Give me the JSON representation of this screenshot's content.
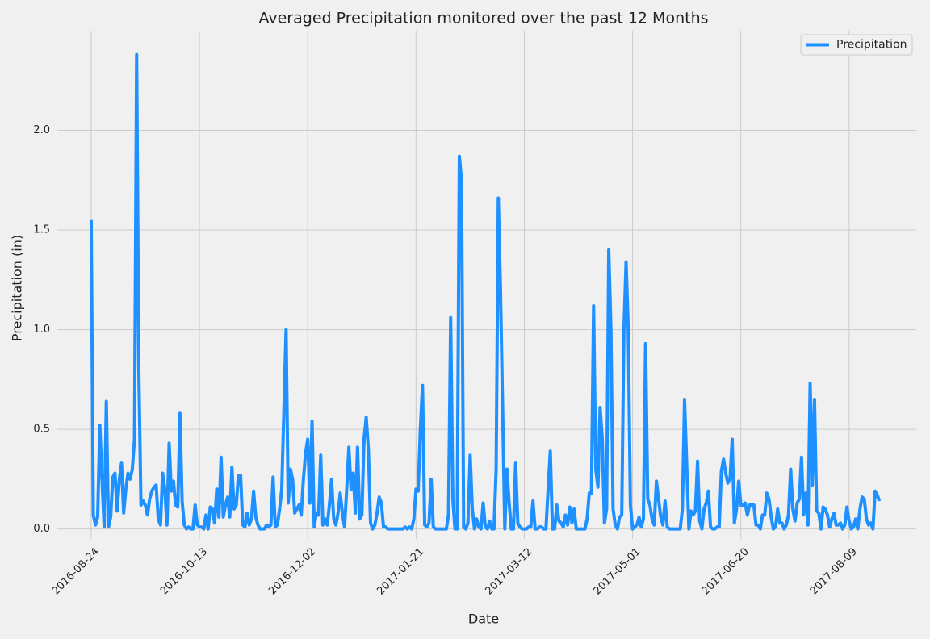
{
  "chart_data": {
    "type": "line",
    "title": "Averaged Precipitation monitored over the past 12 Months",
    "x_label": "Date",
    "y_label": "Precipitation (in)",
    "xlim": [
      "2016-08-08",
      "2017-09-09"
    ],
    "xticks": [
      "2016-08-24",
      "2016-10-13",
      "2016-12-02",
      "2017-01-21",
      "2017-03-12",
      "2017-05-01",
      "2017-06-20",
      "2017-08-09"
    ],
    "ylim": [
      -0.05,
      2.5
    ],
    "yticks": [
      {
        "value": 0,
        "label": "0.0"
      },
      0.5,
      {
        "value": 1,
        "label": "1.0"
      },
      1.5,
      {
        "value": 2,
        "label": "2.0"
      }
    ],
    "grid": true,
    "legend": "upper right",
    "x": [
      "2016-08-24",
      "2016-08-25",
      "2016-08-26",
      "2016-08-27",
      "2016-08-28",
      "2016-08-29",
      "2016-08-30",
      "2016-08-31",
      "2016-09-01",
      "2016-09-02",
      "2016-09-03",
      "2016-09-04",
      "2016-09-05",
      "2016-09-06",
      "2016-09-07",
      "2016-09-08",
      "2016-09-09",
      "2016-09-10",
      "2016-09-11",
      "2016-09-12",
      "2016-09-13",
      "2016-09-14",
      "2016-09-15",
      "2016-09-16",
      "2016-09-17",
      "2016-09-18",
      "2016-09-19",
      "2016-09-20",
      "2016-09-21",
      "2016-09-22",
      "2016-09-23",
      "2016-09-24",
      "2016-09-25",
      "2016-09-26",
      "2016-09-27",
      "2016-09-28",
      "2016-09-29",
      "2016-09-30",
      "2016-10-01",
      "2016-10-02",
      "2016-10-03",
      "2016-10-04",
      "2016-10-05",
      "2016-10-06",
      "2016-10-07",
      "2016-10-08",
      "2016-10-09",
      "2016-10-10",
      "2016-10-11",
      "2016-10-12",
      "2016-10-13",
      "2016-10-14",
      "2016-10-15",
      "2016-10-16",
      "2016-10-17",
      "2016-10-18",
      "2016-10-19",
      "2016-10-20",
      "2016-10-21",
      "2016-10-22",
      "2016-10-23",
      "2016-10-24",
      "2016-10-25",
      "2016-10-26",
      "2016-10-27",
      "2016-10-28",
      "2016-10-29",
      "2016-10-30",
      "2016-10-31",
      "2016-11-01",
      "2016-11-02",
      "2016-11-03",
      "2016-11-04",
      "2016-11-05",
      "2016-11-06",
      "2016-11-07",
      "2016-11-08",
      "2016-11-09",
      "2016-11-10",
      "2016-11-11",
      "2016-11-12",
      "2016-11-13",
      "2016-11-14",
      "2016-11-15",
      "2016-11-16",
      "2016-11-17",
      "2016-11-18",
      "2016-11-19",
      "2016-11-20",
      "2016-11-21",
      "2016-11-22",
      "2016-11-23",
      "2016-11-24",
      "2016-11-25",
      "2016-11-26",
      "2016-11-27",
      "2016-11-28",
      "2016-11-29",
      "2016-11-30",
      "2016-12-01",
      "2016-12-02",
      "2016-12-03",
      "2016-12-04",
      "2016-12-05",
      "2016-12-06",
      "2016-12-07",
      "2016-12-08",
      "2016-12-09",
      "2016-12-10",
      "2016-12-11",
      "2016-12-12",
      "2016-12-13",
      "2016-12-14",
      "2016-12-15",
      "2016-12-16",
      "2016-12-17",
      "2016-12-18",
      "2016-12-19",
      "2016-12-20",
      "2016-12-21",
      "2016-12-22",
      "2016-12-23",
      "2016-12-24",
      "2016-12-25",
      "2016-12-26",
      "2016-12-27",
      "2016-12-28",
      "2016-12-29",
      "2016-12-30",
      "2016-12-31",
      "2017-01-01",
      "2017-01-02",
      "2017-01-03",
      "2017-01-04",
      "2017-01-05",
      "2017-01-06",
      "2017-01-07",
      "2017-01-08",
      "2017-01-09",
      "2017-01-10",
      "2017-01-11",
      "2017-01-12",
      "2017-01-13",
      "2017-01-14",
      "2017-01-15",
      "2017-01-16",
      "2017-01-17",
      "2017-01-18",
      "2017-01-19",
      "2017-01-20",
      "2017-01-21",
      "2017-01-22",
      "2017-01-23",
      "2017-01-24",
      "2017-01-25",
      "2017-01-26",
      "2017-01-27",
      "2017-01-28",
      "2017-01-29",
      "2017-01-30",
      "2017-01-31",
      "2017-02-01",
      "2017-02-02",
      "2017-02-03",
      "2017-02-04",
      "2017-02-05",
      "2017-02-06",
      "2017-02-07",
      "2017-02-08",
      "2017-02-09",
      "2017-02-10",
      "2017-02-11",
      "2017-02-12",
      "2017-02-13",
      "2017-02-14",
      "2017-02-15",
      "2017-02-16",
      "2017-02-17",
      "2017-02-18",
      "2017-02-19",
      "2017-02-20",
      "2017-02-21",
      "2017-02-22",
      "2017-02-23",
      "2017-02-24",
      "2017-02-25",
      "2017-02-26",
      "2017-02-27",
      "2017-02-28",
      "2017-03-01",
      "2017-03-02",
      "2017-03-03",
      "2017-03-04",
      "2017-03-05",
      "2017-03-06",
      "2017-03-07",
      "2017-03-08",
      "2017-03-09",
      "2017-03-10",
      "2017-03-11",
      "2017-03-12",
      "2017-03-13",
      "2017-03-14",
      "2017-03-15",
      "2017-03-16",
      "2017-03-17",
      "2017-03-18",
      "2017-03-19",
      "2017-03-20",
      "2017-03-21",
      "2017-03-22",
      "2017-03-23",
      "2017-03-24",
      "2017-03-25",
      "2017-03-26",
      "2017-03-27",
      "2017-03-28",
      "2017-03-29",
      "2017-03-30",
      "2017-03-31",
      "2017-04-01",
      "2017-04-02",
      "2017-04-03",
      "2017-04-04",
      "2017-04-05",
      "2017-04-06",
      "2017-04-07",
      "2017-04-08",
      "2017-04-09",
      "2017-04-10",
      "2017-04-11",
      "2017-04-12",
      "2017-04-13",
      "2017-04-14",
      "2017-04-15",
      "2017-04-16",
      "2017-04-17",
      "2017-04-18",
      "2017-04-19",
      "2017-04-20",
      "2017-04-21",
      "2017-04-22",
      "2017-04-23",
      "2017-04-24",
      "2017-04-25",
      "2017-04-26",
      "2017-04-27",
      "2017-04-28",
      "2017-04-29",
      "2017-04-30",
      "2017-05-01",
      "2017-05-02",
      "2017-05-03",
      "2017-05-04",
      "2017-05-05",
      "2017-05-06",
      "2017-05-07",
      "2017-05-08",
      "2017-05-09",
      "2017-05-10",
      "2017-05-11",
      "2017-05-12",
      "2017-05-13",
      "2017-05-14",
      "2017-05-15",
      "2017-05-16",
      "2017-05-17",
      "2017-05-18",
      "2017-05-19",
      "2017-05-20",
      "2017-05-21",
      "2017-05-22",
      "2017-05-23",
      "2017-05-24",
      "2017-05-25",
      "2017-05-26",
      "2017-05-27",
      "2017-05-28",
      "2017-05-29",
      "2017-05-30",
      "2017-05-31",
      "2017-06-01",
      "2017-06-02",
      "2017-06-03",
      "2017-06-04",
      "2017-06-05",
      "2017-06-06",
      "2017-06-07",
      "2017-06-08",
      "2017-06-09",
      "2017-06-10",
      "2017-06-11",
      "2017-06-12",
      "2017-06-13",
      "2017-06-14",
      "2017-06-15",
      "2017-06-16",
      "2017-06-17",
      "2017-06-18",
      "2017-06-19",
      "2017-06-20",
      "2017-06-21",
      "2017-06-22",
      "2017-06-23",
      "2017-06-24",
      "2017-06-25",
      "2017-06-26",
      "2017-06-27",
      "2017-06-28",
      "2017-06-29",
      "2017-06-30",
      "2017-07-01",
      "2017-07-02",
      "2017-07-03",
      "2017-07-04",
      "2017-07-05",
      "2017-07-06",
      "2017-07-07",
      "2017-07-08",
      "2017-07-09",
      "2017-07-10",
      "2017-07-11",
      "2017-07-12",
      "2017-07-13",
      "2017-07-14",
      "2017-07-15",
      "2017-07-16",
      "2017-07-17",
      "2017-07-18",
      "2017-07-19",
      "2017-07-20",
      "2017-07-21",
      "2017-07-22",
      "2017-07-23",
      "2017-07-24",
      "2017-07-25",
      "2017-07-26",
      "2017-07-27",
      "2017-07-28",
      "2017-07-29",
      "2017-07-30",
      "2017-07-31",
      "2017-08-01",
      "2017-08-02",
      "2017-08-03",
      "2017-08-04",
      "2017-08-05",
      "2017-08-06",
      "2017-08-07",
      "2017-08-08",
      "2017-08-09",
      "2017-08-10",
      "2017-08-11",
      "2017-08-12",
      "2017-08-13",
      "2017-08-14",
      "2017-08-15",
      "2017-08-16",
      "2017-08-17",
      "2017-08-18",
      "2017-08-19",
      "2017-08-20",
      "2017-08-21",
      "2017-08-22",
      "2017-08-23"
    ],
    "series": [
      {
        "name": "Precipitation",
        "color": "#1e90ff",
        "values": [
          1.55,
          0.07,
          0.02,
          0.06,
          0.52,
          0.25,
          0.01,
          0.64,
          0.01,
          0.06,
          0.26,
          0.28,
          0.09,
          0.25,
          0.33,
          0.08,
          0.2,
          0.28,
          0.25,
          0.3,
          0.45,
          2.38,
          0.8,
          0.12,
          0.14,
          0.12,
          0.07,
          0.15,
          0.19,
          0.21,
          0.22,
          0.05,
          0.02,
          0.28,
          0.2,
          0.02,
          0.43,
          0.19,
          0.24,
          0.12,
          0.11,
          0.58,
          0.14,
          0.02,
          0.0,
          0.01,
          0.0,
          0.0,
          0.12,
          0.02,
          0.01,
          0.01,
          0.0,
          0.07,
          0.0,
          0.11,
          0.1,
          0.03,
          0.2,
          0.06,
          0.36,
          0.06,
          0.12,
          0.16,
          0.06,
          0.31,
          0.1,
          0.12,
          0.27,
          0.27,
          0.02,
          0.01,
          0.08,
          0.02,
          0.05,
          0.19,
          0.06,
          0.02,
          0.0,
          0.0,
          0.0,
          0.02,
          0.01,
          0.02,
          0.26,
          0.01,
          0.02,
          0.1,
          0.2,
          0.6,
          1.0,
          0.13,
          0.3,
          0.25,
          0.08,
          0.1,
          0.12,
          0.07,
          0.25,
          0.38,
          0.45,
          0.13,
          0.54,
          0.01,
          0.08,
          0.07,
          0.37,
          0.02,
          0.05,
          0.02,
          0.12,
          0.25,
          0.05,
          0.02,
          0.08,
          0.18,
          0.08,
          0.01,
          0.2,
          0.41,
          0.2,
          0.28,
          0.08,
          0.41,
          0.05,
          0.07,
          0.45,
          0.56,
          0.4,
          0.03,
          0.0,
          0.02,
          0.08,
          0.16,
          0.13,
          0.01,
          0.01,
          0.0,
          0.0,
          0.0,
          0.0,
          0.0,
          0.0,
          0.0,
          0.0,
          0.01,
          0.0,
          0.01,
          0.0,
          0.05,
          0.2,
          0.19,
          0.5,
          0.72,
          0.02,
          0.01,
          0.03,
          0.25,
          0.01,
          0.0,
          0.0,
          0.0,
          0.0,
          0.0,
          0.0,
          0.07,
          1.06,
          0.15,
          0.0,
          0.0,
          1.87,
          1.75,
          0.01,
          0.0,
          0.03,
          0.37,
          0.1,
          0.0,
          0.05,
          0.01,
          0.0,
          0.13,
          0.01,
          0.0,
          0.04,
          0.0,
          0.0,
          0.3,
          1.66,
          1.2,
          0.6,
          0.0,
          0.3,
          0.13,
          0.0,
          0.0,
          0.33,
          0.03,
          0.01,
          0.0,
          0.0,
          0.0,
          0.01,
          0.01,
          0.14,
          0.0,
          0.0,
          0.01,
          0.01,
          0.0,
          0.0,
          0.2,
          0.39,
          0.0,
          0.0,
          0.12,
          0.04,
          0.03,
          0.01,
          0.07,
          0.02,
          0.11,
          0.03,
          0.1,
          0.0,
          0.0,
          0.0,
          0.0,
          0.0,
          0.05,
          0.18,
          0.18,
          1.12,
          0.3,
          0.21,
          0.61,
          0.45,
          0.03,
          0.1,
          1.4,
          1.0,
          0.1,
          0.02,
          0.0,
          0.06,
          0.07,
          1.0,
          1.34,
          1.0,
          0.12,
          0.0,
          0.01,
          0.02,
          0.06,
          0.01,
          0.05,
          0.93,
          0.15,
          0.12,
          0.05,
          0.02,
          0.24,
          0.15,
          0.06,
          0.02,
          0.14,
          0.01,
          0.0,
          0.0,
          0.0,
          0.0,
          0.0,
          0.0,
          0.1,
          0.65,
          0.32,
          0.0,
          0.09,
          0.07,
          0.09,
          0.34,
          0.04,
          0.0,
          0.1,
          0.13,
          0.19,
          0.01,
          0.0,
          0.0,
          0.01,
          0.01,
          0.29,
          0.35,
          0.28,
          0.23,
          0.25,
          0.45,
          0.03,
          0.1,
          0.24,
          0.12,
          0.12,
          0.13,
          0.07,
          0.12,
          0.12,
          0.12,
          0.02,
          0.02,
          0.0,
          0.07,
          0.07,
          0.18,
          0.15,
          0.06,
          0.0,
          0.01,
          0.1,
          0.03,
          0.03,
          0.0,
          0.02,
          0.07,
          0.3,
          0.1,
          0.04,
          0.13,
          0.15,
          0.36,
          0.07,
          0.18,
          0.02,
          0.73,
          0.22,
          0.65,
          0.09,
          0.08,
          0.0,
          0.11,
          0.1,
          0.07,
          0.01,
          0.05,
          0.08,
          0.02,
          0.02,
          0.03,
          0.0,
          0.02,
          0.11,
          0.04,
          0.0,
          0.01,
          0.05,
          0.0,
          0.1,
          0.16,
          0.15,
          0.05,
          0.02,
          0.03,
          0.0,
          0.19,
          0.17,
          0.14
        ]
      }
    ]
  }
}
